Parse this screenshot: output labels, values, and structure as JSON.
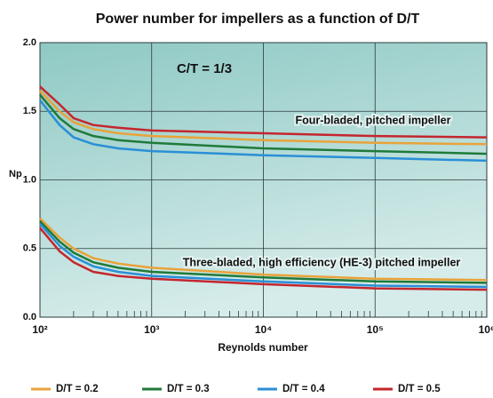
{
  "chart_data": {
    "type": "line",
    "title": "Power number for impellers as a function of D/T",
    "annotation": "C/T = 1/3",
    "xlabel": "Reynolds number",
    "ylabel": "Np",
    "xscale": "log",
    "x": [
      100,
      150,
      200,
      300,
      500,
      1000,
      10000,
      100000,
      1000000
    ],
    "curve_labels": [
      "Four-bladed, pitched impeller",
      "Three-bladed, high efficiency (HE-3) pitched impeller"
    ],
    "series": [
      {
        "name": "D/T = 0.2",
        "color": "#e8a33a",
        "curves": [
          [
            1.65,
            1.5,
            1.42,
            1.37,
            1.34,
            1.32,
            1.29,
            1.27,
            1.26
          ],
          [
            0.72,
            0.58,
            0.5,
            0.43,
            0.39,
            0.36,
            0.31,
            0.28,
            0.27
          ]
        ]
      },
      {
        "name": "D/T = 0.3",
        "color": "#1f7a3a",
        "curves": [
          [
            1.62,
            1.45,
            1.37,
            1.32,
            1.29,
            1.27,
            1.23,
            1.21,
            1.19
          ],
          [
            0.7,
            0.55,
            0.47,
            0.4,
            0.36,
            0.33,
            0.29,
            0.26,
            0.25
          ]
        ]
      },
      {
        "name": "D/T = 0.4",
        "color": "#2a8fd6",
        "curves": [
          [
            1.58,
            1.4,
            1.31,
            1.26,
            1.23,
            1.21,
            1.18,
            1.16,
            1.14
          ],
          [
            0.68,
            0.52,
            0.44,
            0.37,
            0.33,
            0.3,
            0.26,
            0.23,
            0.22
          ]
        ]
      },
      {
        "name": "D/T = 0.5",
        "color": "#c4262e",
        "curves": [
          [
            1.68,
            1.55,
            1.45,
            1.4,
            1.38,
            1.36,
            1.34,
            1.32,
            1.31
          ],
          [
            0.65,
            0.48,
            0.4,
            0.33,
            0.3,
            0.28,
            0.24,
            0.21,
            0.2
          ]
        ]
      }
    ],
    "xlim": [
      100,
      1000000
    ],
    "xticks": [
      {
        "value": 100,
        "label": "10²"
      },
      {
        "value": 1000,
        "label": "10³"
      },
      {
        "value": 10000,
        "label": "10⁴"
      },
      {
        "value": 100000,
        "label": "10⁵"
      },
      {
        "value": 1000000,
        "label": "10⁶"
      }
    ],
    "xminor_ticks": [
      200,
      300,
      400,
      500,
      600,
      700,
      800,
      900,
      2000,
      3000,
      4000,
      5000,
      6000,
      7000,
      8000,
      9000,
      20000,
      30000,
      40000,
      50000,
      60000,
      70000,
      80000,
      90000,
      200000,
      300000,
      400000,
      500000,
      600000,
      700000,
      800000,
      900000
    ],
    "ylim": [
      0,
      2
    ],
    "yticks": [
      {
        "value": 0,
        "label": "0.0"
      },
      0.5,
      {
        "value": 1,
        "label": "1.0"
      },
      1.5,
      {
        "value": 2,
        "label": "2.0"
      }
    ],
    "grid": true
  }
}
